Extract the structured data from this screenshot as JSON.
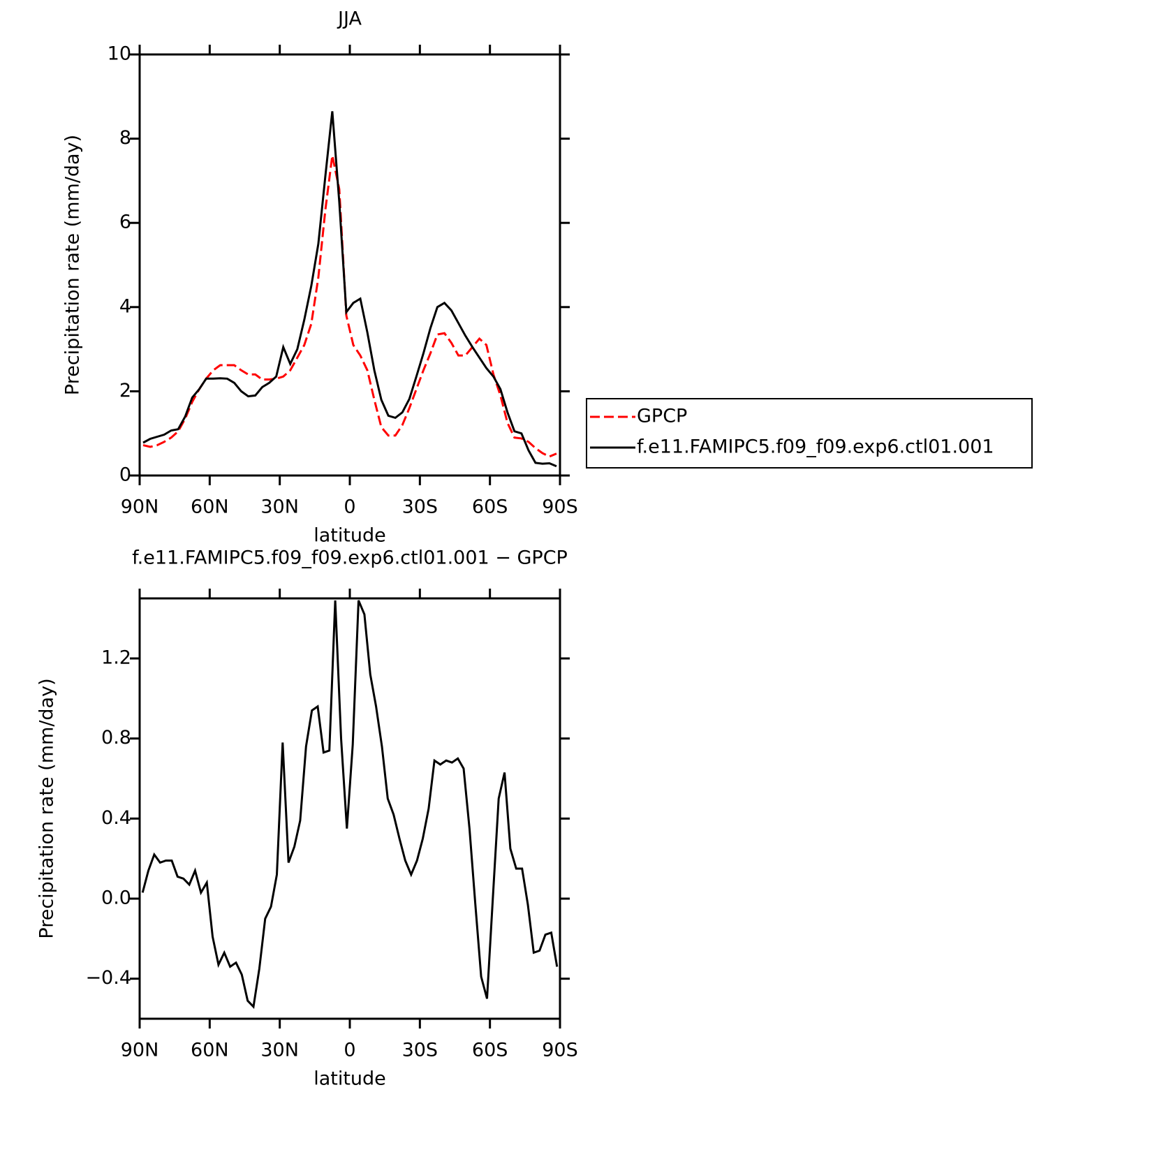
{
  "chart_data": [
    {
      "type": "line",
      "title": "JJA",
      "x_label": "latitude",
      "y_label": "Precipitation rate (mm/day)",
      "x": [
        88.5,
        85.5,
        82.5,
        79.5,
        76.5,
        73.5,
        70.5,
        67.5,
        64.5,
        61.5,
        58.5,
        55.5,
        52.5,
        49.5,
        46.5,
        43.5,
        40.5,
        37.5,
        34.5,
        31.5,
        28.5,
        25.5,
        22.5,
        19.5,
        16.5,
        13.5,
        10.5,
        7.5,
        4.5,
        1.5,
        -1.5,
        -4.5,
        -7.5,
        -10.5,
        -13.5,
        -16.5,
        -19.5,
        -22.5,
        -25.5,
        -28.5,
        -31.5,
        -34.5,
        -37.5,
        -40.5,
        -43.5,
        -46.5,
        -49.5,
        -52.5,
        -55.5,
        -58.5,
        -61.5,
        -64.5,
        -67.5,
        -70.5,
        -73.5,
        -76.5,
        -79.5,
        -82.5,
        -85.5,
        -88.5
      ],
      "series": [
        {
          "name": "GPCP",
          "color": "#ff0000",
          "linestyle": "dashed",
          "values": [
            0.72,
            0.68,
            0.72,
            0.8,
            0.9,
            1.05,
            1.35,
            1.75,
            2.05,
            2.3,
            2.5,
            2.62,
            2.62,
            2.62,
            2.5,
            2.4,
            2.4,
            2.28,
            2.28,
            2.3,
            2.35,
            2.5,
            2.8,
            3.1,
            3.6,
            4.7,
            6.3,
            7.6,
            6.8,
            3.8,
            3.1,
            2.85,
            2.5,
            1.8,
            1.15,
            0.95,
            0.95,
            1.2,
            1.6,
            2.05,
            2.5,
            2.9,
            3.35,
            3.38,
            3.15,
            2.85,
            2.85,
            3.05,
            3.25,
            3.1,
            2.4,
            1.9,
            1.25,
            0.9,
            0.88,
            0.8,
            0.65,
            0.53,
            0.45,
            0.52
          ]
        },
        {
          "name": "f.e11.FAMIPC5.f09_f09.exp6.ctl01.001",
          "color": "#000000",
          "linestyle": "solid",
          "values": [
            0.78,
            0.87,
            0.92,
            0.97,
            1.07,
            1.1,
            1.4,
            1.85,
            2.05,
            2.3,
            2.3,
            2.31,
            2.3,
            2.2,
            2.0,
            1.88,
            1.9,
            2.1,
            2.2,
            2.35,
            3.05,
            2.65,
            3.0,
            3.7,
            4.5,
            5.5,
            7.1,
            8.65,
            6.5,
            3.88,
            4.1,
            4.2,
            3.4,
            2.5,
            1.8,
            1.42,
            1.37,
            1.5,
            1.82,
            2.35,
            2.9,
            3.5,
            4.0,
            4.1,
            3.92,
            3.62,
            3.32,
            3.05,
            2.8,
            2.55,
            2.35,
            2.05,
            1.5,
            1.05,
            1.0,
            0.6,
            0.3,
            0.28,
            0.29,
            0.22
          ]
        }
      ],
      "xlim": [
        90,
        -90
      ],
      "xticks": [
        {
          "value": 90,
          "label": "90N"
        },
        {
          "value": 60,
          "label": "60N"
        },
        {
          "value": 30,
          "label": "30N"
        },
        0,
        {
          "value": -30,
          "label": "30S"
        },
        {
          "value": -60,
          "label": "60S"
        },
        {
          "value": -90,
          "label": "90S"
        }
      ],
      "ylim": [
        0,
        10
      ],
      "yticks": [
        0,
        2,
        4,
        6,
        8,
        10
      ],
      "legend": "right"
    },
    {
      "type": "line",
      "title": "f.e11.FAMIPC5.f09_f09.exp6.ctl01.001 − GPCP",
      "x_label": "latitude",
      "y_label": "Precipitation rate (mm/day)",
      "x": [
        88.75,
        86.25,
        83.75,
        81.25,
        78.75,
        76.25,
        73.75,
        71.25,
        68.75,
        66.25,
        63.75,
        61.25,
        58.75,
        56.25,
        53.75,
        51.25,
        48.75,
        46.25,
        43.75,
        41.25,
        38.75,
        36.25,
        33.75,
        31.25,
        28.75,
        26.25,
        23.75,
        21.25,
        18.75,
        16.25,
        13.75,
        11.25,
        8.75,
        6.25,
        3.75,
        1.25,
        -1.25,
        -3.75,
        -6.25,
        -8.75,
        -11.25,
        -13.75,
        -16.25,
        -18.75,
        -21.25,
        -23.75,
        -26.25,
        -28.75,
        -31.25,
        -33.75,
        -36.25,
        -38.75,
        -41.25,
        -43.75,
        -46.25,
        -48.75,
        -51.25,
        -53.75,
        -56.25,
        -58.75,
        -61.25,
        -63.75,
        -66.25,
        -68.75,
        -71.25,
        -73.75,
        -76.25,
        -78.75,
        -81.25,
        -83.75,
        -86.25,
        -88.75
      ],
      "series": [
        {
          "name": "f.e11.FAMIPC5.f09_f09.exp6.ctl01.001 − GPCP",
          "color": "#000000",
          "linestyle": "solid",
          "values": [
            0.03,
            0.14,
            0.22,
            0.18,
            0.19,
            0.19,
            0.11,
            0.1,
            0.07,
            0.14,
            0.03,
            0.08,
            -0.19,
            -0.33,
            -0.27,
            -0.34,
            -0.32,
            -0.38,
            -0.51,
            -0.54,
            -0.35,
            -0.1,
            -0.04,
            0.12,
            0.78,
            0.18,
            0.26,
            0.39,
            0.76,
            0.94,
            0.96,
            0.73,
            0.74,
            1.49,
            0.8,
            0.35,
            0.77,
            1.49,
            1.42,
            1.12,
            0.96,
            0.76,
            0.5,
            0.42,
            0.3,
            0.19,
            0.12,
            0.19,
            0.3,
            0.45,
            0.69,
            0.67,
            0.69,
            0.68,
            0.7,
            0.65,
            0.35,
            -0.03,
            -0.39,
            -0.5,
            0.0,
            0.5,
            0.63,
            0.25,
            0.15,
            0.15,
            -0.03,
            -0.27,
            -0.26,
            -0.18,
            -0.17,
            -0.34
          ]
        }
      ],
      "xlim": [
        90,
        -90
      ],
      "xticks": [
        {
          "value": 90,
          "label": "90N"
        },
        {
          "value": 60,
          "label": "60N"
        },
        {
          "value": 30,
          "label": "30N"
        },
        0,
        {
          "value": -30,
          "label": "30S"
        },
        {
          "value": -60,
          "label": "60S"
        },
        {
          "value": -90,
          "label": "90S"
        }
      ],
      "ylim": [
        -0.6,
        1.5
      ],
      "yticks": [
        {
          "value": -0.4,
          "label": "−0.4"
        },
        {
          "value": 0,
          "label": "0.0"
        },
        0.4,
        0.8,
        1.2
      ]
    }
  ]
}
